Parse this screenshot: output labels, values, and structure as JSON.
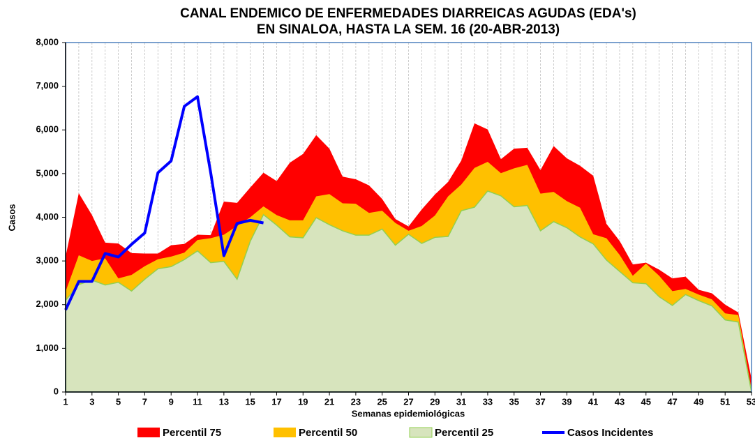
{
  "chart_data": {
    "type": "area",
    "title": [
      "CANAL ENDEMICO DE ENFERMEDADES DIARREICAS AGUDAS (EDA's)",
      "EN SINALOA, HASTA LA SEM. 16 (20-ABR-2013)"
    ],
    "y_label": "Casos",
    "x_label": "Semanas epidemiológicas",
    "x": [
      1,
      2,
      3,
      4,
      5,
      6,
      7,
      8,
      9,
      10,
      11,
      12,
      13,
      14,
      15,
      16,
      17,
      18,
      19,
      20,
      21,
      22,
      23,
      24,
      25,
      26,
      27,
      28,
      29,
      30,
      31,
      32,
      33,
      34,
      35,
      36,
      37,
      38,
      39,
      40,
      41,
      42,
      43,
      44,
      45,
      46,
      47,
      48,
      49,
      50,
      51,
      52,
      53
    ],
    "xlim": [
      1,
      53
    ],
    "xticks": [
      1,
      3,
      5,
      7,
      9,
      11,
      13,
      15,
      17,
      19,
      21,
      23,
      25,
      27,
      29,
      31,
      33,
      35,
      37,
      39,
      41,
      43,
      45,
      47,
      49,
      51,
      53
    ],
    "ylim": [
      0,
      8000
    ],
    "yticks": [
      {
        "value": 0,
        "label": "0"
      },
      {
        "value": 1000,
        "label": "1,000"
      },
      {
        "value": 2000,
        "label": "2,000"
      },
      {
        "value": 3000,
        "label": "3,000"
      },
      {
        "value": 4000,
        "label": "4,000"
      },
      {
        "value": 5000,
        "label": "5,000"
      },
      {
        "value": 6000,
        "label": "6,000"
      },
      {
        "value": 7000,
        "label": "7,000"
      },
      {
        "value": 8000,
        "label": "8,000"
      }
    ],
    "grid": true,
    "series": [
      {
        "name": "Percentil 75",
        "color": "#ff0000",
        "kind": "area",
        "values": [
          3100,
          4550,
          4050,
          3420,
          3400,
          3180,
          3170,
          3170,
          3360,
          3390,
          3600,
          3590,
          4360,
          4330,
          4680,
          5020,
          4830,
          5250,
          5450,
          5880,
          5570,
          4930,
          4870,
          4730,
          4420,
          3960,
          3790,
          4180,
          4520,
          4810,
          5300,
          6150,
          6010,
          5330,
          5570,
          5590,
          5080,
          5630,
          5350,
          5180,
          4950,
          3850,
          3460,
          2920,
          2960,
          2800,
          2600,
          2640,
          2340,
          2260,
          2000,
          1820,
          300
        ]
      },
      {
        "name": "Percentil 50",
        "color": "#ffc000",
        "kind": "area",
        "values": [
          2300,
          3130,
          3000,
          3060,
          2600,
          2680,
          2880,
          3040,
          3100,
          3190,
          3480,
          3520,
          3600,
          3800,
          4000,
          4250,
          4050,
          3930,
          3930,
          4480,
          4530,
          4320,
          4310,
          4100,
          4150,
          3870,
          3690,
          3800,
          4040,
          4480,
          4750,
          5130,
          5270,
          5010,
          5120,
          5200,
          4540,
          4580,
          4370,
          4220,
          3610,
          3520,
          3140,
          2660,
          2940,
          2660,
          2310,
          2360,
          2230,
          2120,
          1800,
          1760,
          50
        ]
      },
      {
        "name": "Percentil 25",
        "color": "#d7e4bd",
        "kind": "area",
        "values": [
          2100,
          2460,
          2560,
          2450,
          2510,
          2310,
          2580,
          2820,
          2870,
          3030,
          3230,
          2960,
          2990,
          2580,
          3450,
          4060,
          3820,
          3550,
          3530,
          3990,
          3830,
          3690,
          3590,
          3590,
          3730,
          3360,
          3610,
          3400,
          3540,
          3560,
          4150,
          4230,
          4600,
          4490,
          4240,
          4270,
          3690,
          3900,
          3760,
          3550,
          3390,
          3020,
          2760,
          2500,
          2480,
          2180,
          1980,
          2230,
          2090,
          1970,
          1650,
          1600,
          0
        ]
      },
      {
        "name": "Casos Incidentes",
        "color": "#0000ff",
        "kind": "line",
        "values": [
          1880,
          2530,
          2530,
          3170,
          3090,
          3380,
          3640,
          5020,
          5290,
          6540,
          6760,
          5020,
          3120,
          3860,
          3930,
          3870,
          null,
          null,
          null,
          null,
          null,
          null,
          null,
          null,
          null,
          null,
          null,
          null,
          null,
          null,
          null,
          null,
          null,
          null,
          null,
          null,
          null,
          null,
          null,
          null,
          null,
          null,
          null,
          null,
          null,
          null,
          null,
          null,
          null,
          null,
          null,
          null,
          null
        ]
      }
    ]
  }
}
